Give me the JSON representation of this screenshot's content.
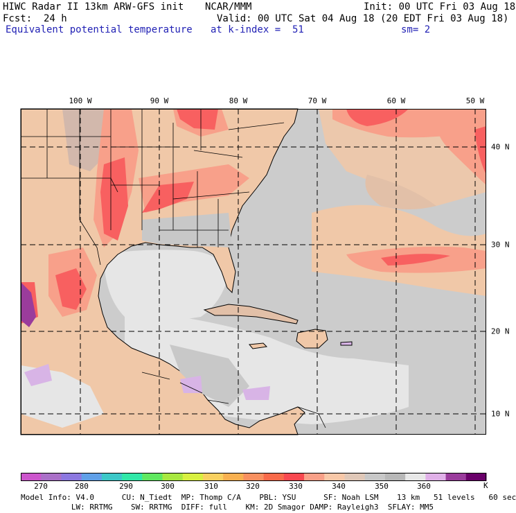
{
  "header": {
    "title": "HIWC Radar II 13km ARW-GFS init",
    "org": "NCAR/MMM",
    "init": "Init: 00 UTC Fri 03 Aug 18",
    "fcst_label": "Fcst:",
    "fcst_value": "24 h",
    "valid": "Valid: 00 UTC Sat 04 Aug 18 (20 EDT Fri 03 Aug 18)",
    "field": "Equivalent potential temperature",
    "level": "at k-index =  51",
    "smoothing": "sm= 2"
  },
  "map": {
    "lon_labels": [
      "100 W",
      "90 W",
      "80 W",
      "70 W",
      "60 W",
      "50 W"
    ],
    "lat_labels": [
      "40 N",
      "30 N",
      "20 N",
      "10 N"
    ],
    "colors": {
      "ocean_gray": "#cccccc",
      "light_gray": "#e6e6e6",
      "tan": "#f0c8a8",
      "salmon": "#f8a08a",
      "red": "#f86060",
      "lavender": "#d8b4e6",
      "purple": "#9a3c9c",
      "boundary": "#000000"
    }
  },
  "colorbar": {
    "unit": "K",
    "colors": [
      "#cc55cc",
      "#aa70c8",
      "#8c78e0",
      "#60a0e8",
      "#3cc8c8",
      "#30e8a8",
      "#60e860",
      "#a8e840",
      "#d8f040",
      "#f8d060",
      "#f8b050",
      "#f89060",
      "#f86a4a",
      "#f84850",
      "#f8a088",
      "#f8c8a8",
      "#e0c8b8",
      "#c8c8c8",
      "#b8b8b8",
      "#e8e8e8",
      "#e0b0e8",
      "#9a3c9c",
      "#6a006a"
    ],
    "labels": [
      "270",
      "280",
      "290",
      "300",
      "310",
      "320",
      "330",
      "340",
      "350",
      "360"
    ]
  },
  "footer": {
    "line1": "Model Info: V4.0      CU: N_Tiedt  MP: Thomp C/A    PBL: YSU      SF: Noah LSM    13 km   51 levels   60 sec",
    "line2": "           LW: RRTMG    SW: RRTMG  DIFF: full    KM: 2D Smagor DAMP: Rayleigh3  SFLAY: MM5"
  }
}
